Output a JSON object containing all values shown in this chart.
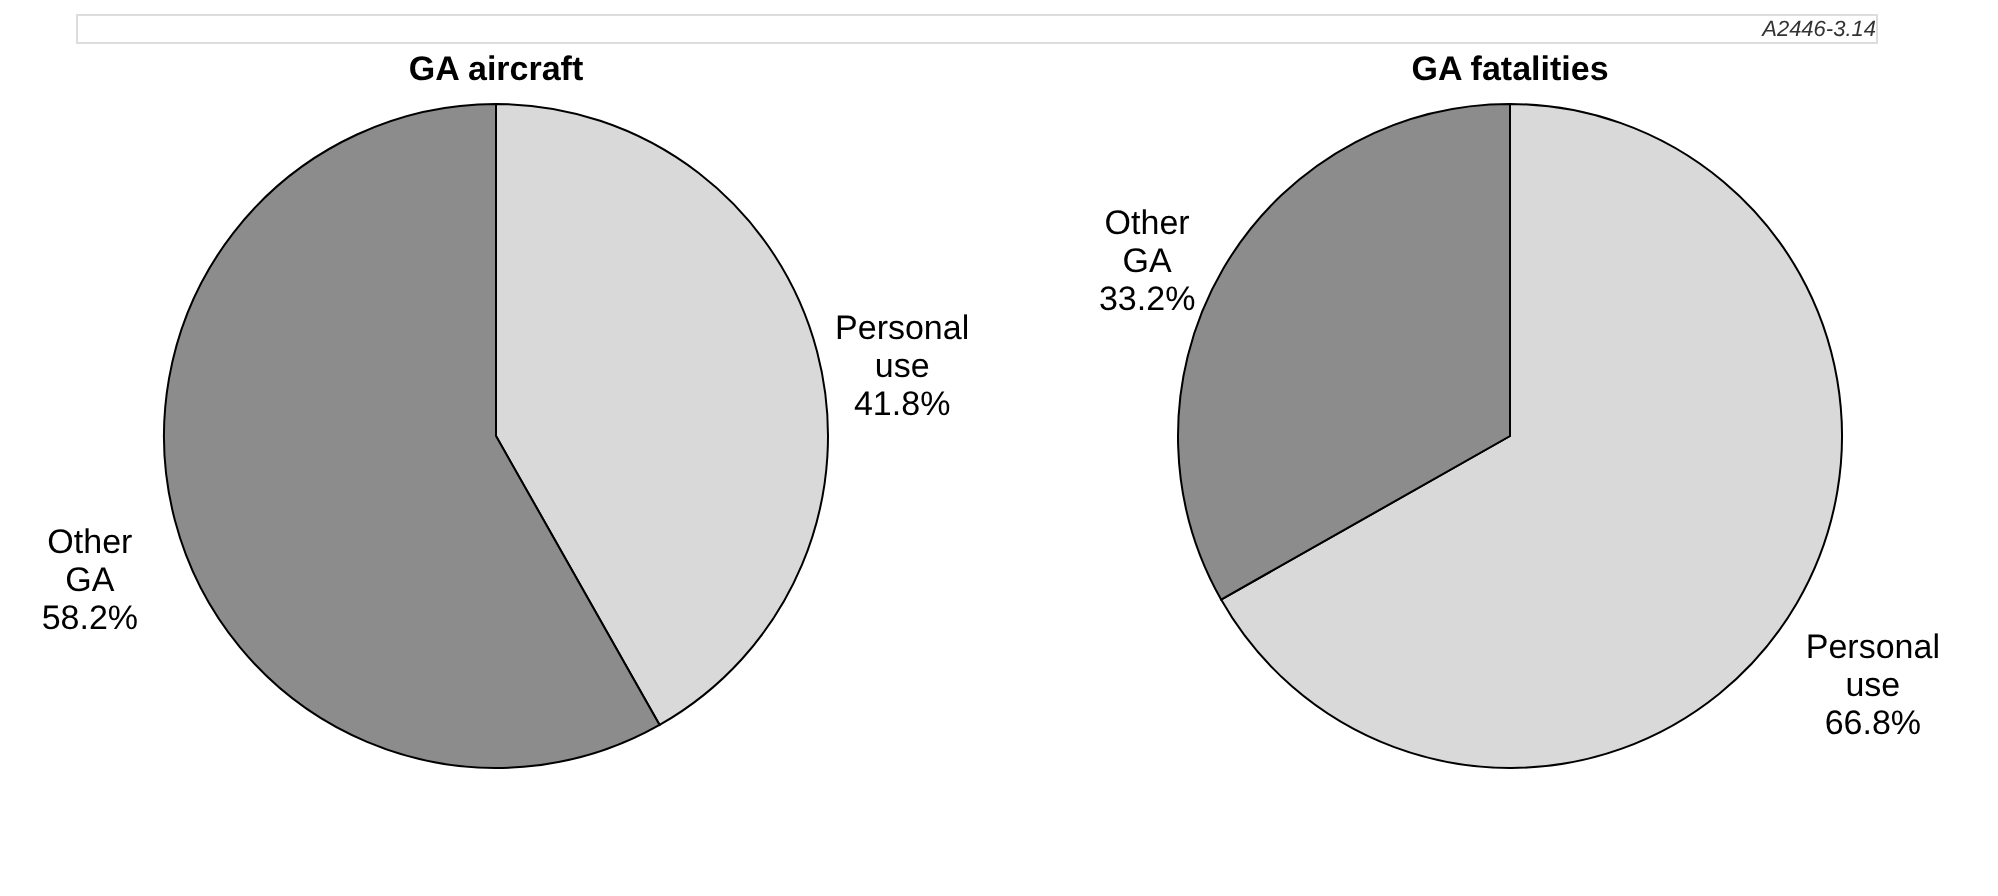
{
  "chart_data": [
    {
      "type": "pie",
      "title": "GA aircraft",
      "categories": [
        "Personal use",
        "Other GA"
      ],
      "values": [
        41.8,
        58.2
      ],
      "value_labels": [
        "41.8%",
        "58.2%"
      ],
      "colors": [
        "#d9d9d9",
        "#8c8c8c"
      ],
      "legend": false,
      "annotations": [
        "A2446-3.14"
      ]
    },
    {
      "type": "pie",
      "title": "GA fatalities",
      "categories": [
        "Personal use",
        "Other GA"
      ],
      "values": [
        66.8,
        33.2
      ],
      "value_labels": [
        "66.8%",
        "33.2%"
      ],
      "colors": [
        "#d9d9d9",
        "#8c8c8c"
      ],
      "legend": false
    }
  ]
}
